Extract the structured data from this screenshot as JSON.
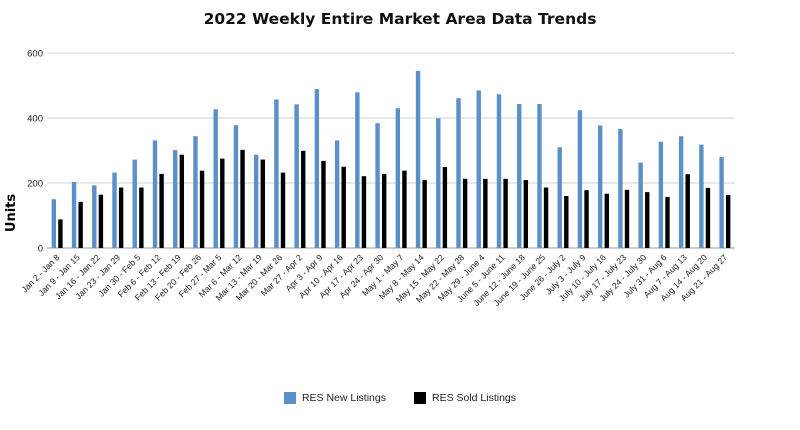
{
  "chart_data": {
    "type": "bar",
    "title": "2022 Weekly Entire Market Area Data Trends",
    "xlabel": "",
    "ylabel": "Units",
    "ylim": [
      0,
      600
    ],
    "yticks": [
      "0",
      "200",
      "400",
      "600"
    ],
    "grid": true,
    "legend_position": "bottom",
    "categories": [
      "Jan 2 - Jan 8",
      "Jan 9 - Jan 15",
      "Jan 16 - Jan 22",
      "Jan 23 - Jan 29",
      "Jan 30 - Feb 5",
      "Feb 6 - Feb 12",
      "Feb 13 - Feb 19",
      "Feb 20 - Feb 26",
      "Feb 27 - Mar 5",
      "Mar 6 - Mar 12",
      "Mar 13 - Mar 19",
      "Mar 20 - Mar 26",
      "Mar 27 - Apr 2",
      "Apr 3 - Apr 9",
      "Apr 10 - Apr 16",
      "Apr 17 - Apr 23",
      "Apr 24 - Apr 30",
      "May 1 - May 7",
      "May 8 - May 14",
      "May 15 - May 22",
      "May 22 - May 28",
      "May 29 - June 4",
      "June 5 - June 11",
      "June 12 - June 18",
      "June 19 - June 25",
      "June 26 - July 2",
      "July 3 - July 9",
      "July 10 - July 16",
      "July 17 - July 23",
      "July 24 - July 30",
      "July 31 - Aug 6",
      "Aug 7 - Aug 13",
      "Aug 14 - Aug 20",
      "Aug 21 - Aug 27"
    ],
    "series": [
      {
        "name": "RES New Listings",
        "color": "#5b8fc9",
        "values": [
          150,
          203,
          193,
          232,
          272,
          331,
          301,
          344,
          427,
          378,
          287,
          457,
          442,
          489,
          331,
          479,
          384,
          430,
          545,
          399,
          461,
          485,
          473,
          443,
          443,
          310,
          424,
          377,
          366,
          263,
          327,
          344,
          318,
          280
        ]
      },
      {
        "name": "RES Sold Listings",
        "color": "#000000",
        "values": [
          88,
          142,
          164,
          186,
          186,
          228,
          287,
          238,
          275,
          302,
          272,
          232,
          299,
          268,
          250,
          221,
          228,
          238,
          209,
          249,
          213,
          213,
          213,
          209,
          186,
          160,
          178,
          167,
          179,
          172,
          157,
          227,
          185,
          163
        ]
      }
    ]
  }
}
